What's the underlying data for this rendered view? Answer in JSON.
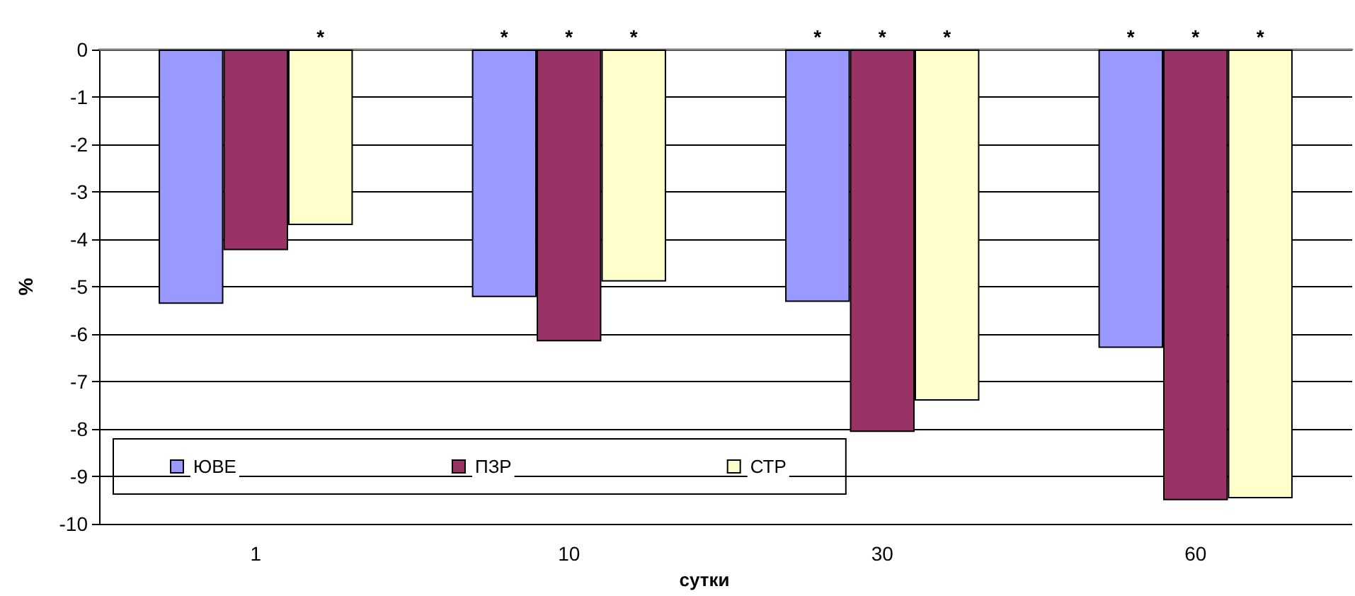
{
  "chart_data": {
    "type": "bar",
    "xlabel": "сутки",
    "ylabel": "%",
    "categories": [
      "1",
      "10",
      "30",
      "60"
    ],
    "series": [
      {
        "name": "ЮВЕ",
        "color": "#9999ff",
        "values": [
          -5.36,
          -5.22,
          -5.32,
          -6.29
        ],
        "value_labels": [
          null,
          "*",
          "*",
          "*"
        ]
      },
      {
        "name": "ПЗР",
        "color": "#993366",
        "values": [
          -4.23,
          -6.15,
          -8.06,
          -9.5
        ],
        "value_labels": [
          null,
          "*",
          "*",
          "*"
        ]
      },
      {
        "name": "СТР",
        "color": "#ffffcc",
        "values": [
          -3.7,
          -4.89,
          -7.4,
          -9.46
        ],
        "value_labels": [
          "*",
          "*",
          "*",
          "*"
        ]
      }
    ],
    "ylim": [
      -10,
      0
    ],
    "yticks": [
      -10,
      -9,
      -8,
      -7,
      -6,
      -5,
      -4,
      -3,
      -2,
      -1,
      0
    ],
    "grid": "y",
    "legend": "bottom left"
  }
}
